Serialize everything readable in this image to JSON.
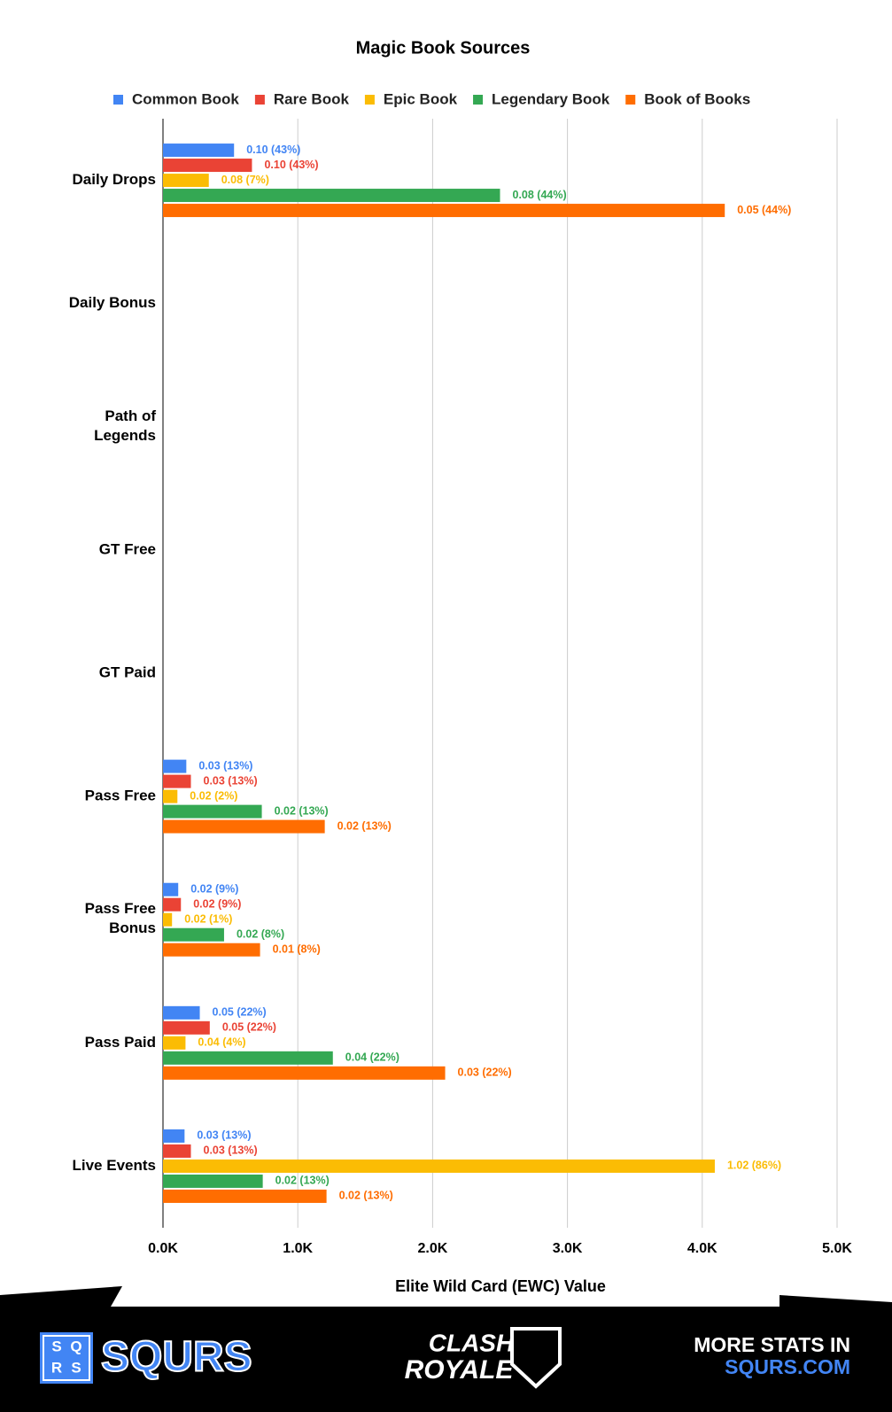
{
  "chart_data": {
    "type": "hbar",
    "title": "Magic Book Sources",
    "x_label": "Elite Wild Card (EWC) Value",
    "categories": [
      "Daily Drops",
      "Daily Bonus",
      "Path of\nLegends",
      "GT Free",
      "GT Paid",
      "Pass Free",
      "Pass Free\nBonus",
      "Pass Paid",
      "Live Events"
    ],
    "series": [
      {
        "name": "Common Book",
        "color": "#4285f4",
        "values": [
          527,
          null,
          null,
          null,
          null,
          173,
          113,
          273,
          160
        ],
        "labels": [
          "0.10 (43%)",
          null,
          null,
          null,
          null,
          "0.03 (13%)",
          "0.02 (9%)",
          "0.05 (22%)",
          "0.03 (13%)"
        ]
      },
      {
        "name": "Rare Book",
        "color": "#ea4335",
        "values": [
          660,
          null,
          null,
          null,
          null,
          207,
          133,
          347,
          207
        ],
        "labels": [
          "0.10 (43%)",
          null,
          null,
          null,
          null,
          "0.03 (13%)",
          "0.02 (9%)",
          "0.05 (22%)",
          "0.03 (13%)"
        ]
      },
      {
        "name": "Epic Book",
        "color": "#fbbc04",
        "values": [
          340,
          null,
          null,
          null,
          null,
          107,
          67,
          167,
          4093
        ],
        "labels": [
          "0.08 (7%)",
          null,
          null,
          null,
          null,
          "0.02 (2%)",
          "0.02 (1%)",
          "0.04 (4%)",
          "1.02 (86%)"
        ]
      },
      {
        "name": "Legendary Book",
        "color": "#34a853",
        "values": [
          2500,
          null,
          null,
          null,
          null,
          733,
          453,
          1260,
          740
        ],
        "labels": [
          "0.08 (44%)",
          null,
          null,
          null,
          null,
          "0.02 (13%)",
          "0.02 (8%)",
          "0.04 (22%)",
          "0.02 (13%)"
        ]
      },
      {
        "name": "Book of Books",
        "color": "#ff6d01",
        "values": [
          4167,
          null,
          null,
          null,
          null,
          1200,
          720,
          2093,
          1213
        ],
        "labels": [
          "0.05 (44%)",
          null,
          null,
          null,
          null,
          "0.02 (13%)",
          "0.01 (8%)",
          "0.03 (22%)",
          "0.02 (13%)"
        ]
      }
    ],
    "xlim": [
      0,
      5000
    ],
    "xticks": [
      {
        "value": 0,
        "label": "0.0K"
      },
      {
        "value": 1000,
        "label": "1.0K"
      },
      {
        "value": 2000,
        "label": "2.0K"
      },
      {
        "value": 3000,
        "label": "3.0K"
      },
      {
        "value": 4000,
        "label": "4.0K"
      },
      {
        "value": 5000,
        "label": "5.0K"
      }
    ],
    "grid": true,
    "legend": "top"
  },
  "footer": {
    "logo_letters": [
      "S",
      "Q",
      "R",
      "S"
    ],
    "brand": "SQURS",
    "game_line1": "CLASH",
    "game_line2": "ROYALE",
    "promo_line1": "MORE STATS IN",
    "promo_line2": "SQURS.COM"
  }
}
